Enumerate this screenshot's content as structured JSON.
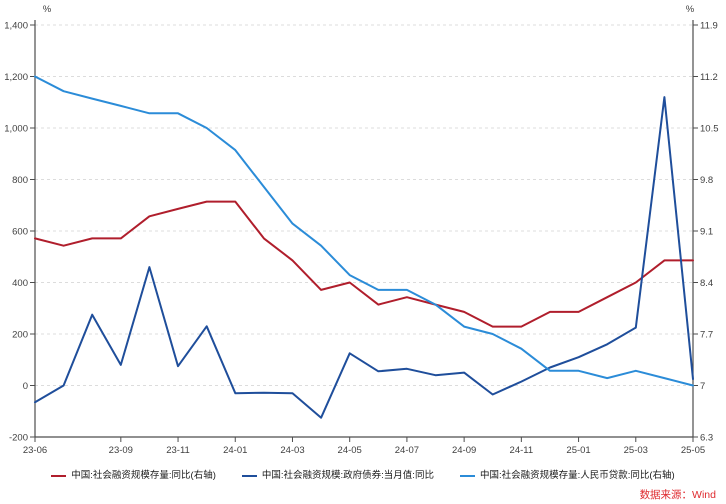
{
  "source_note": {
    "text": "数据来源：Wind",
    "color": "#DF2B2F"
  },
  "style": {
    "background": "#ffffff",
    "grid_color": "#dcdcdc",
    "axis_color": "#4d4d4d",
    "tick_label_color": "#3f3f3f",
    "legend_text_color": "#1a1a1a"
  },
  "chart_data": {
    "type": "line",
    "title": "",
    "categories": [
      "23-06",
      "23-07",
      "23-08",
      "23-09",
      "23-10",
      "23-11",
      "23-12",
      "24-01",
      "24-02",
      "24-03",
      "24-04",
      "24-05",
      "24-06",
      "24-07",
      "24-08",
      "24-09",
      "24-10",
      "24-11",
      "24-12",
      "25-01",
      "25-02",
      "25-03",
      "25-04",
      "25-05"
    ],
    "x_tick_indices": [
      0,
      3,
      5,
      7,
      9,
      11,
      13,
      15,
      17,
      19,
      21,
      23
    ],
    "x_tick_labels": [
      "23-06",
      "23-09",
      "23-11",
      "24-01",
      "24-03",
      "24-05",
      "24-07",
      "24-09",
      "24-11",
      "25-01",
      "25-03",
      "25-05"
    ],
    "grid": true,
    "legend_position": "bottom",
    "axes": {
      "left": {
        "unit": "%",
        "min": -200,
        "max": 1400,
        "step": 200,
        "tick_labels_top_to_bottom": [
          "1,400",
          "1,200",
          "1,000",
          "800",
          "600",
          "400",
          "200",
          "0",
          "-200"
        ]
      },
      "right": {
        "unit": "%",
        "min": 6.3,
        "max": 11.9,
        "step": 0.7,
        "tick_labels_top_to_bottom": [
          "11.9",
          "11.2",
          "10.5",
          "9.8",
          "9.1",
          "8.4",
          "7.7",
          "7",
          "6.3"
        ]
      }
    },
    "series": [
      {
        "name": "中国:社会融资规模存量:同比(右轴)",
        "axis": "right",
        "color": "#B01E2C",
        "values": [
          9.0,
          8.9,
          9.0,
          9.0,
          9.3,
          9.4,
          9.5,
          9.5,
          9.0,
          8.7,
          8.3,
          8.4,
          8.1,
          8.2,
          8.1,
          8.0,
          7.8,
          7.8,
          8.0,
          8.0,
          8.2,
          8.4,
          8.7,
          8.7
        ]
      },
      {
        "name": "中国:社会融资规模:政府债券:当月值:同比",
        "axis": "left",
        "color": "#1F4E9B",
        "values": [
          -65,
          0,
          275,
          80,
          460,
          75,
          230,
          -30,
          -28,
          -30,
          -125,
          125,
          55,
          65,
          40,
          50,
          -35,
          15,
          70,
          110,
          160,
          225,
          1120,
          25
        ]
      },
      {
        "name": "中国:社会融资规模存量:人民币贷款:同比(右轴)",
        "axis": "right",
        "color": "#2B8CD8",
        "values": [
          11.2,
          11.0,
          10.9,
          10.8,
          10.7,
          10.7,
          10.5,
          10.2,
          9.7,
          9.2,
          8.9,
          8.5,
          8.3,
          8.3,
          8.1,
          7.8,
          7.7,
          7.5,
          7.2,
          7.2,
          7.1,
          7.2,
          7.1,
          7.0
        ]
      }
    ]
  }
}
